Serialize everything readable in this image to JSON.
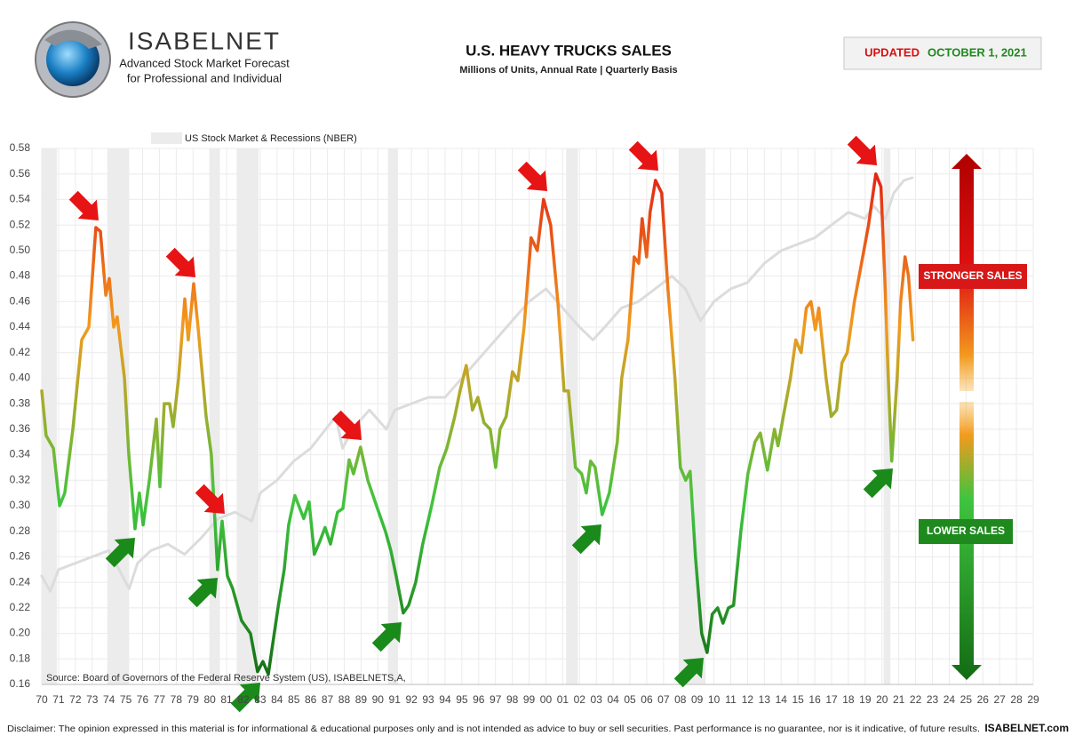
{
  "header": {
    "brand": "ISABELNET",
    "tagline1": "Advanced Stock Market Forecast",
    "tagline2": "for Professional and Individual",
    "updated_label": "UPDATED",
    "updated_date": "OCTOBER 1, 2021"
  },
  "chart_data": {
    "type": "line",
    "title": "U.S. HEAVY TRUCKS SALES",
    "subtitle": "Millions of Units, Annual Rate | Quarterly Basis",
    "source": "Source: Board of Governors of the Federal Reserve System (US), ISABELNETS,A,",
    "annotations": {
      "high": "STRONGER SALES",
      "low": "LOWER SALES"
    },
    "gradient": [
      "#136b13",
      "#3fc43f",
      "#f29a1e",
      "#e01212"
    ],
    "xlim": [
      1970,
      2029
    ],
    "ylim": [
      0.16,
      0.58
    ],
    "yticks": [
      0.16,
      0.18,
      {
        "value": 0.2,
        "label": "0.20"
      },
      0.22,
      0.24,
      0.26,
      0.28,
      {
        "value": 0.3,
        "label": "0.30"
      },
      0.32,
      0.34,
      0.36,
      0.38,
      {
        "value": 0.4,
        "label": "0.40"
      },
      0.42,
      0.44,
      0.46,
      0.48,
      {
        "value": 0.5,
        "label": "0.50"
      },
      0.52,
      0.54,
      0.56,
      0.58
    ],
    "xticks": [
      {
        "value": 1970,
        "label": "70"
      },
      {
        "value": 1971,
        "label": "71"
      },
      {
        "value": 1972,
        "label": "72"
      },
      {
        "value": 1973,
        "label": "73"
      },
      {
        "value": 1974,
        "label": "74"
      },
      {
        "value": 1975,
        "label": "75"
      },
      {
        "value": 1976,
        "label": "76"
      },
      {
        "value": 1977,
        "label": "77"
      },
      {
        "value": 1978,
        "label": "78"
      },
      {
        "value": 1979,
        "label": "79"
      },
      {
        "value": 1980,
        "label": "80"
      },
      {
        "value": 1981,
        "label": "81"
      },
      {
        "value": 1982,
        "label": "82"
      },
      {
        "value": 1983,
        "label": "83"
      },
      {
        "value": 1984,
        "label": "84"
      },
      {
        "value": 1985,
        "label": "85"
      },
      {
        "value": 1986,
        "label": "86"
      },
      {
        "value": 1987,
        "label": "87"
      },
      {
        "value": 1988,
        "label": "88"
      },
      {
        "value": 1989,
        "label": "89"
      },
      {
        "value": 1990,
        "label": "90"
      },
      {
        "value": 1991,
        "label": "91"
      },
      {
        "value": 1992,
        "label": "92"
      },
      {
        "value": 1993,
        "label": "93"
      },
      {
        "value": 1994,
        "label": "94"
      },
      {
        "value": 1995,
        "label": "95"
      },
      {
        "value": 1996,
        "label": "96"
      },
      {
        "value": 1997,
        "label": "97"
      },
      {
        "value": 1998,
        "label": "98"
      },
      {
        "value": 1999,
        "label": "99"
      },
      {
        "value": 2000,
        "label": "00"
      },
      {
        "value": 2001,
        "label": "01"
      },
      {
        "value": 2002,
        "label": "02"
      },
      {
        "value": 2003,
        "label": "03"
      },
      {
        "value": 2004,
        "label": "04"
      },
      {
        "value": 2005,
        "label": "05"
      },
      {
        "value": 2006,
        "label": "06"
      },
      {
        "value": 2007,
        "label": "07"
      },
      {
        "value": 2008,
        "label": "08"
      },
      {
        "value": 2009,
        "label": "09"
      },
      {
        "value": 2010,
        "label": "10"
      },
      {
        "value": 2011,
        "label": "11"
      },
      {
        "value": 2012,
        "label": "12"
      },
      {
        "value": 2013,
        "label": "13"
      },
      {
        "value": 2014,
        "label": "14"
      },
      {
        "value": 2015,
        "label": "15"
      },
      {
        "value": 2016,
        "label": "16"
      },
      {
        "value": 2017,
        "label": "17"
      },
      {
        "value": 2018,
        "label": "18"
      },
      {
        "value": 2019,
        "label": "19"
      },
      {
        "value": 2020,
        "label": "20"
      },
      {
        "value": 2021,
        "label": "21"
      },
      {
        "value": 2022,
        "label": "22"
      },
      {
        "value": 2023,
        "label": "23"
      },
      {
        "value": 2024,
        "label": "24"
      },
      {
        "value": 2025,
        "label": "25"
      },
      {
        "value": 2026,
        "label": "26"
      },
      {
        "value": 2027,
        "label": "27"
      },
      {
        "value": 2028,
        "label": "28"
      },
      {
        "value": 2029,
        "label": "29"
      }
    ],
    "grid": true,
    "recessions": [
      [
        1970.0,
        1970.9
      ],
      [
        1973.9,
        1975.2
      ],
      [
        1980.0,
        1980.6
      ],
      [
        1981.6,
        1982.9
      ],
      [
        1990.6,
        1991.2
      ],
      [
        2001.2,
        2001.9
      ],
      [
        2007.9,
        2009.5
      ],
      [
        2020.1,
        2020.5
      ]
    ],
    "recession_color": "#ececec",
    "series": [
      {
        "x": [
          1970.0,
          1970.26,
          1970.69,
          1971.06,
          1971.37,
          1971.85,
          1972.38,
          1972.8,
          1973.22,
          1973.49,
          1973.81,
          1974.02,
          1974.28,
          1974.49,
          1974.92,
          1975.18,
          1975.55,
          1975.81,
          1976.03,
          1976.4,
          1976.82,
          1977.03,
          1977.29,
          1977.61,
          1977.82,
          1978.14,
          1978.51,
          1978.72,
          1979.04,
          1979.3,
          1979.78,
          1980.09,
          1980.46,
          1980.73,
          1981.05,
          1981.36,
          1981.89,
          1982.42,
          1982.84,
          1983.16,
          1983.48,
          1984.06,
          1984.43,
          1984.69,
          1985.06,
          1985.59,
          1985.91,
          1986.22,
          1986.54,
          1986.86,
          1987.18,
          1987.6,
          1987.92,
          1988.29,
          1988.55,
          1988.97,
          1989.4,
          1989.92,
          1990.45,
          1990.77,
          1991.09,
          1991.51,
          1991.83,
          1992.25,
          1992.67,
          1993.2,
          1993.68,
          1994.1,
          1994.58,
          1994.89,
          1995.26,
          1995.63,
          1995.95,
          1996.32,
          1996.69,
          1997.01,
          1997.27,
          1997.64,
          1998.01,
          1998.33,
          1998.7,
          1999.12,
          1999.49,
          1999.86,
          2000.28,
          2000.71,
          2001.08,
          2001.34,
          2001.76,
          2002.13,
          2002.4,
          2002.66,
          2002.93,
          2003.35,
          2003.77,
          2004.25,
          2004.51,
          2004.88,
          2005.25,
          2005.52,
          2005.73,
          2005.99,
          2006.2,
          2006.52,
          2006.89,
          2007.26,
          2007.68,
          2008.0,
          2008.32,
          2008.58,
          2008.9,
          2009.27,
          2009.59,
          2009.9,
          2010.22,
          2010.54,
          2010.86,
          2011.17,
          2011.6,
          2012.02,
          2012.44,
          2012.76,
          2013.18,
          2013.6,
          2013.81,
          2014.13,
          2014.55,
          2014.87,
          2015.19,
          2015.5,
          2015.77,
          2016.03,
          2016.24,
          2016.67,
          2016.98,
          2017.3,
          2017.62,
          2017.93,
          2018.36,
          2018.78,
          2019.2,
          2019.63,
          2019.94,
          2020.16,
          2020.37,
          2020.58,
          2020.9,
          2021.11,
          2021.37,
          2021.58,
          2021.84
        ],
        "values": [
          0.39,
          0.355,
          0.345,
          0.3,
          0.31,
          0.36,
          0.43,
          0.44,
          0.518,
          0.515,
          0.465,
          0.478,
          0.44,
          0.448,
          0.4,
          0.34,
          0.282,
          0.31,
          0.285,
          0.32,
          0.368,
          0.315,
          0.38,
          0.38,
          0.362,
          0.4,
          0.462,
          0.43,
          0.474,
          0.44,
          0.37,
          0.34,
          0.25,
          0.288,
          0.245,
          0.235,
          0.21,
          0.2,
          0.17,
          0.178,
          0.168,
          0.22,
          0.25,
          0.285,
          0.308,
          0.29,
          0.303,
          0.262,
          0.272,
          0.283,
          0.27,
          0.295,
          0.298,
          0.336,
          0.325,
          0.346,
          0.32,
          0.3,
          0.28,
          0.265,
          0.245,
          0.216,
          0.222,
          0.24,
          0.27,
          0.3,
          0.33,
          0.345,
          0.37,
          0.39,
          0.41,
          0.375,
          0.385,
          0.365,
          0.36,
          0.33,
          0.36,
          0.37,
          0.405,
          0.398,
          0.44,
          0.51,
          0.5,
          0.54,
          0.52,
          0.46,
          0.39,
          0.39,
          0.33,
          0.325,
          0.31,
          0.335,
          0.33,
          0.293,
          0.31,
          0.35,
          0.4,
          0.43,
          0.495,
          0.49,
          0.525,
          0.495,
          0.53,
          0.555,
          0.545,
          0.47,
          0.4,
          0.33,
          0.32,
          0.327,
          0.26,
          0.2,
          0.185,
          0.215,
          0.22,
          0.208,
          0.22,
          0.222,
          0.28,
          0.325,
          0.35,
          0.357,
          0.328,
          0.36,
          0.347,
          0.37,
          0.4,
          0.43,
          0.42,
          0.455,
          0.46,
          0.438,
          0.455,
          0.4,
          0.37,
          0.375,
          0.412,
          0.42,
          0.46,
          0.49,
          0.52,
          0.56,
          0.55,
          0.48,
          0.4,
          0.335,
          0.4,
          0.46,
          0.495,
          0.48,
          0.43
        ]
      },
      {
        "name": "US Stock Market & Recessions (NBER)",
        "color": "#dcdcdc",
        "x": [
          1970,
          1970.5,
          1971,
          1972,
          1973,
          1974,
          1974.8,
          1975.2,
          1975.7,
          1976.5,
          1977.5,
          1978.5,
          1979.5,
          1980.5,
          1981.5,
          1982.5,
          1983,
          1984,
          1985,
          1986,
          1987.5,
          1987.9,
          1988.5,
          1989.5,
          1990.5,
          1991,
          1992,
          1993,
          1994,
          1995,
          1996,
          1997,
          1998,
          1999,
          2000,
          2001,
          2002,
          2002.8,
          2003.5,
          2004.5,
          2005.5,
          2006.5,
          2007.5,
          2008.3,
          2009.2,
          2010,
          2011,
          2012,
          2013,
          2014,
          2015,
          2016,
          2017,
          2018,
          2019,
          2019.5,
          2020.2,
          2020.7,
          2021.3,
          2021.8
        ],
        "values": [
          0.245,
          0.233,
          0.25,
          0.255,
          0.26,
          0.265,
          0.245,
          0.235,
          0.255,
          0.265,
          0.27,
          0.262,
          0.275,
          0.29,
          0.295,
          0.288,
          0.31,
          0.32,
          0.335,
          0.345,
          0.37,
          0.345,
          0.36,
          0.375,
          0.36,
          0.375,
          0.38,
          0.385,
          0.385,
          0.4,
          0.415,
          0.43,
          0.445,
          0.46,
          0.47,
          0.455,
          0.44,
          0.43,
          0.44,
          0.455,
          0.46,
          0.47,
          0.48,
          0.47,
          0.445,
          0.46,
          0.47,
          0.475,
          0.49,
          0.5,
          0.505,
          0.51,
          0.52,
          0.53,
          0.525,
          0.535,
          0.525,
          0.545,
          0.555,
          0.557
        ]
      }
    ]
  },
  "footer": {
    "disclaimer": "Disclaimer: The opinion expressed in this material is for informational & educational purposes only and is not intended as advice to buy or sell securities. Past performance is no guarantee, nor is it indicative, of future results.",
    "site": "ISABELNET.com"
  }
}
